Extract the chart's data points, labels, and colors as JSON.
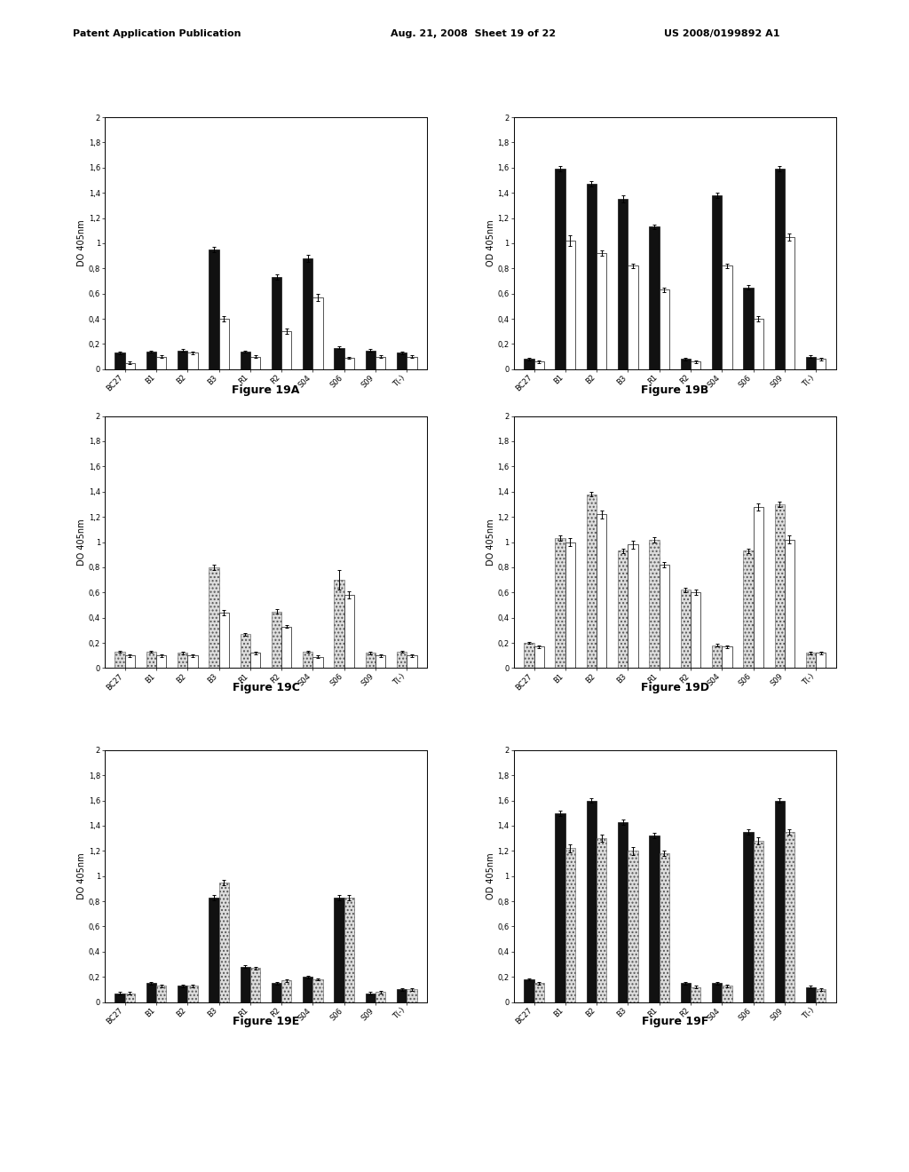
{
  "header_left": "Patent Application Publication",
  "header_mid": "Aug. 21, 2008  Sheet 19 of 22",
  "header_right": "US 2008/0199892 A1",
  "categories": [
    "BC27",
    "B1",
    "B2",
    "B3",
    "R1",
    "R2",
    "S04",
    "S06",
    "S09",
    "T(-)"
  ],
  "figures": [
    {
      "label": "Figure 19A",
      "ylabel": "DO 405nm",
      "style1": "black",
      "style2": "white",
      "bar_groups": [
        {
          "v1": 0.13,
          "v2": 0.05,
          "e1": 0.01,
          "e2": 0.01
        },
        {
          "v1": 0.14,
          "v2": 0.1,
          "e1": 0.01,
          "e2": 0.01
        },
        {
          "v1": 0.15,
          "v2": 0.13,
          "e1": 0.01,
          "e2": 0.01
        },
        {
          "v1": 0.95,
          "v2": 0.4,
          "e1": 0.02,
          "e2": 0.02
        },
        {
          "v1": 0.14,
          "v2": 0.1,
          "e1": 0.01,
          "e2": 0.01
        },
        {
          "v1": 0.73,
          "v2": 0.3,
          "e1": 0.02,
          "e2": 0.02
        },
        {
          "v1": 0.88,
          "v2": 0.57,
          "e1": 0.03,
          "e2": 0.03
        },
        {
          "v1": 0.17,
          "v2": 0.09,
          "e1": 0.01,
          "e2": 0.01
        },
        {
          "v1": 0.15,
          "v2": 0.1,
          "e1": 0.01,
          "e2": 0.01
        },
        {
          "v1": 0.13,
          "v2": 0.1,
          "e1": 0.01,
          "e2": 0.01
        }
      ]
    },
    {
      "label": "Figure 19B",
      "ylabel": "OD 405nm",
      "style1": "black",
      "style2": "white",
      "bar_groups": [
        {
          "v1": 0.08,
          "v2": 0.06,
          "e1": 0.01,
          "e2": 0.01
        },
        {
          "v1": 1.59,
          "v2": 1.02,
          "e1": 0.02,
          "e2": 0.04
        },
        {
          "v1": 1.47,
          "v2": 0.92,
          "e1": 0.02,
          "e2": 0.02
        },
        {
          "v1": 1.35,
          "v2": 0.82,
          "e1": 0.03,
          "e2": 0.02
        },
        {
          "v1": 1.13,
          "v2": 0.63,
          "e1": 0.02,
          "e2": 0.02
        },
        {
          "v1": 0.08,
          "v2": 0.06,
          "e1": 0.01,
          "e2": 0.01
        },
        {
          "v1": 1.38,
          "v2": 0.82,
          "e1": 0.02,
          "e2": 0.02
        },
        {
          "v1": 0.65,
          "v2": 0.4,
          "e1": 0.02,
          "e2": 0.02
        },
        {
          "v1": 1.59,
          "v2": 1.05,
          "e1": 0.02,
          "e2": 0.03
        },
        {
          "v1": 0.1,
          "v2": 0.08,
          "e1": 0.01,
          "e2": 0.01
        }
      ]
    },
    {
      "label": "Figure 19C",
      "ylabel": "DO 405nm",
      "style1": "hatched",
      "style2": "white",
      "bar_groups": [
        {
          "v1": 0.13,
          "v2": 0.1,
          "e1": 0.01,
          "e2": 0.01
        },
        {
          "v1": 0.13,
          "v2": 0.1,
          "e1": 0.01,
          "e2": 0.01
        },
        {
          "v1": 0.12,
          "v2": 0.1,
          "e1": 0.01,
          "e2": 0.01
        },
        {
          "v1": 0.8,
          "v2": 0.44,
          "e1": 0.02,
          "e2": 0.02
        },
        {
          "v1": 0.27,
          "v2": 0.12,
          "e1": 0.01,
          "e2": 0.01
        },
        {
          "v1": 0.45,
          "v2": 0.33,
          "e1": 0.02,
          "e2": 0.01
        },
        {
          "v1": 0.13,
          "v2": 0.09,
          "e1": 0.01,
          "e2": 0.01
        },
        {
          "v1": 0.7,
          "v2": 0.58,
          "e1": 0.08,
          "e2": 0.03
        },
        {
          "v1": 0.12,
          "v2": 0.1,
          "e1": 0.01,
          "e2": 0.01
        },
        {
          "v1": 0.13,
          "v2": 0.1,
          "e1": 0.01,
          "e2": 0.01
        }
      ]
    },
    {
      "label": "Figure 19D",
      "ylabel": "DO 405nm",
      "style1": "hatched",
      "style2": "white",
      "bar_groups": [
        {
          "v1": 0.2,
          "v2": 0.17,
          "e1": 0.01,
          "e2": 0.01
        },
        {
          "v1": 1.03,
          "v2": 1.0,
          "e1": 0.02,
          "e2": 0.03
        },
        {
          "v1": 1.38,
          "v2": 1.22,
          "e1": 0.02,
          "e2": 0.03
        },
        {
          "v1": 0.93,
          "v2": 0.98,
          "e1": 0.02,
          "e2": 0.03
        },
        {
          "v1": 1.02,
          "v2": 0.82,
          "e1": 0.02,
          "e2": 0.02
        },
        {
          "v1": 0.62,
          "v2": 0.6,
          "e1": 0.02,
          "e2": 0.02
        },
        {
          "v1": 0.18,
          "v2": 0.17,
          "e1": 0.01,
          "e2": 0.01
        },
        {
          "v1": 0.93,
          "v2": 1.28,
          "e1": 0.02,
          "e2": 0.03
        },
        {
          "v1": 1.3,
          "v2": 1.02,
          "e1": 0.02,
          "e2": 0.03
        },
        {
          "v1": 0.12,
          "v2": 0.12,
          "e1": 0.01,
          "e2": 0.01
        }
      ]
    },
    {
      "label": "Figure 19E",
      "ylabel": "DO 405nm",
      "style1": "black",
      "style2": "hatched",
      "bar_groups": [
        {
          "v1": 0.07,
          "v2": 0.07,
          "e1": 0.01,
          "e2": 0.01
        },
        {
          "v1": 0.15,
          "v2": 0.13,
          "e1": 0.01,
          "e2": 0.01
        },
        {
          "v1": 0.13,
          "v2": 0.13,
          "e1": 0.01,
          "e2": 0.01
        },
        {
          "v1": 0.83,
          "v2": 0.95,
          "e1": 0.02,
          "e2": 0.02
        },
        {
          "v1": 0.28,
          "v2": 0.27,
          "e1": 0.01,
          "e2": 0.01
        },
        {
          "v1": 0.15,
          "v2": 0.17,
          "e1": 0.01,
          "e2": 0.01
        },
        {
          "v1": 0.2,
          "v2": 0.18,
          "e1": 0.01,
          "e2": 0.01
        },
        {
          "v1": 0.83,
          "v2": 0.83,
          "e1": 0.02,
          "e2": 0.02
        },
        {
          "v1": 0.07,
          "v2": 0.08,
          "e1": 0.01,
          "e2": 0.01
        },
        {
          "v1": 0.1,
          "v2": 0.1,
          "e1": 0.01,
          "e2": 0.01
        }
      ]
    },
    {
      "label": "Figure 19F",
      "ylabel": "OD 405nm",
      "style1": "black",
      "style2": "hatched",
      "bar_groups": [
        {
          "v1": 0.18,
          "v2": 0.15,
          "e1": 0.01,
          "e2": 0.01
        },
        {
          "v1": 1.5,
          "v2": 1.22,
          "e1": 0.02,
          "e2": 0.03
        },
        {
          "v1": 1.6,
          "v2": 1.3,
          "e1": 0.02,
          "e2": 0.03
        },
        {
          "v1": 1.43,
          "v2": 1.2,
          "e1": 0.02,
          "e2": 0.03
        },
        {
          "v1": 1.32,
          "v2": 1.18,
          "e1": 0.02,
          "e2": 0.02
        },
        {
          "v1": 0.15,
          "v2": 0.12,
          "e1": 0.01,
          "e2": 0.01
        },
        {
          "v1": 0.15,
          "v2": 0.13,
          "e1": 0.01,
          "e2": 0.01
        },
        {
          "v1": 1.35,
          "v2": 1.28,
          "e1": 0.02,
          "e2": 0.03
        },
        {
          "v1": 1.6,
          "v2": 1.35,
          "e1": 0.02,
          "e2": 0.02
        },
        {
          "v1": 0.12,
          "v2": 0.1,
          "e1": 0.01,
          "e2": 0.01
        }
      ]
    }
  ]
}
